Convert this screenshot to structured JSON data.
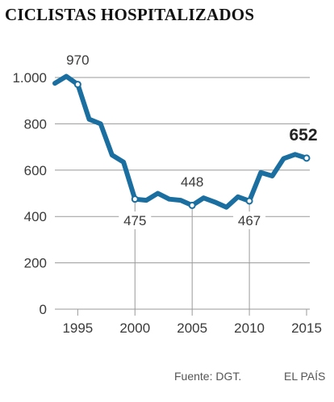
{
  "chart_data": {
    "type": "line",
    "title": "CICLISTAS HOSPITALIZADOS",
    "source": "Fuente: DGT.",
    "publisher": "EL PAÍS",
    "xlim": [
      1993,
      2015
    ],
    "ylim": [
      0,
      1000
    ],
    "x_ticks": [
      1995,
      2000,
      2005,
      2010,
      2015
    ],
    "y_ticks": [
      {
        "value": 0,
        "label": "0"
      },
      {
        "value": 200,
        "label": "200"
      },
      {
        "value": 400,
        "label": "400"
      },
      {
        "value": 600,
        "label": "600"
      },
      {
        "value": 800,
        "label": "800"
      },
      {
        "value": 1000,
        "label": "1.000"
      }
    ],
    "line_color": "#1a6fa0",
    "series": [
      {
        "x": [
          1993,
          1994,
          1995,
          1996,
          1997,
          1998,
          1999,
          2000,
          2001,
          2002,
          2003,
          2004,
          2005,
          2006,
          2007,
          2008,
          2009,
          2010,
          2011,
          2012,
          2013,
          2014,
          2015
        ],
        "values": [
          975,
          1005,
          970,
          820,
          800,
          665,
          635,
          475,
          470,
          500,
          475,
          470,
          448,
          480,
          462,
          440,
          485,
          467,
          590,
          575,
          650,
          668,
          652
        ]
      }
    ],
    "annotations": [
      {
        "x": 1995,
        "y": 970,
        "label": "970",
        "bold": false
      },
      {
        "x": 2000,
        "y": 475,
        "label": "475",
        "bold": false
      },
      {
        "x": 2005,
        "y": 448,
        "label": "448",
        "bold": false
      },
      {
        "x": 2010,
        "y": 467,
        "label": "467",
        "bold": false
      },
      {
        "x": 2015,
        "y": 652,
        "label": "652",
        "bold": true
      }
    ]
  }
}
